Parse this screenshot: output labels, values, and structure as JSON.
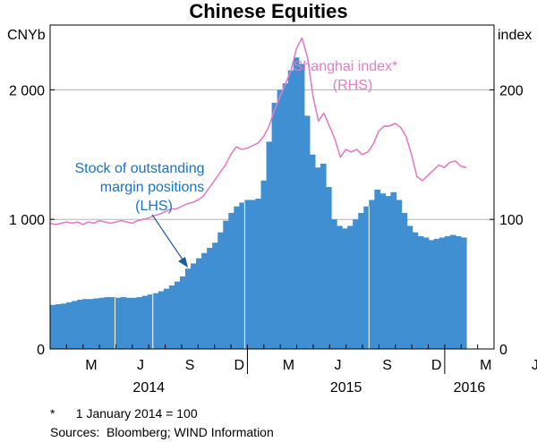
{
  "chart_data": {
    "type": "bar",
    "title": "Chinese Equities",
    "left_axis": {
      "unit": "CNYb",
      "ylim": [
        0,
        2500
      ],
      "ticks": [
        0,
        1000,
        2000
      ],
      "tick_labels": [
        "0",
        "1 000",
        "2 000"
      ]
    },
    "right_axis": {
      "unit": "index",
      "ylim": [
        0,
        250
      ],
      "ticks": [
        0,
        100,
        200
      ],
      "tick_labels": [
        "0",
        "100",
        "200"
      ]
    },
    "x_axis": {
      "month_labels": [
        "M",
        "J",
        "S",
        "D",
        "M",
        "J",
        "S",
        "D",
        "M",
        "J"
      ],
      "year_labels": [
        "2014",
        "2015",
        "2016"
      ]
    },
    "grid": true,
    "series": [
      {
        "name": "Stock of outstanding margin positions",
        "kind": "bar",
        "axis": "left",
        "color": "#3f8fd2",
        "label": "(LHS)",
        "values": [
          340,
          345,
          350,
          360,
          370,
          380,
          385,
          385,
          390,
          395,
          400,
          400,
          395,
          400,
          395,
          395,
          400,
          410,
          420,
          430,
          445,
          465,
          490,
          520,
          560,
          620,
          660,
          700,
          740,
          780,
          820,
          900,
          990,
          1050,
          1100,
          1130,
          1150,
          1150,
          1160,
          1300,
          1600,
          1900,
          2000,
          2050,
          2150,
          2250,
          2200,
          1800,
          1500,
          1400,
          1430,
          1250,
          1000,
          950,
          930,
          950,
          1000,
          1050,
          1100,
          1150,
          1230,
          1200,
          1180,
          1210,
          1150,
          1050,
          950,
          900,
          870,
          860,
          840,
          850,
          860,
          870,
          880,
          870,
          860
        ]
      },
      {
        "name": "Shanghai index*",
        "kind": "line",
        "axis": "right",
        "color": "#e07ec5",
        "label": "(RHS)",
        "values": [
          97,
          96,
          97,
          98,
          97,
          98,
          96,
          98,
          97,
          99,
          98,
          97,
          98,
          99,
          98,
          97,
          99,
          100,
          101,
          103,
          104,
          106,
          108,
          108,
          110,
          112,
          113,
          115,
          118,
          124,
          130,
          136,
          142,
          150,
          156,
          154,
          155,
          157,
          159,
          164,
          172,
          185,
          195,
          205,
          215,
          232,
          240,
          225,
          195,
          176,
          182,
          172,
          162,
          148,
          154,
          152,
          154,
          150,
          152,
          158,
          168,
          172,
          172,
          174,
          171,
          164,
          150,
          133,
          130,
          134,
          138,
          142,
          140,
          144,
          145,
          141,
          140
        ]
      }
    ],
    "annotations": [
      {
        "text": "Stock of outstanding",
        "series": "Stock of outstanding margin positions"
      },
      {
        "text": "margin positions"
      },
      {
        "text": "(LHS)"
      },
      {
        "text": "Shanghai index*"
      },
      {
        "text": "(RHS)"
      }
    ],
    "footnote": "*      1 January 2014 = 100",
    "sources": "Sources:  Bloomberg; WIND Information"
  }
}
